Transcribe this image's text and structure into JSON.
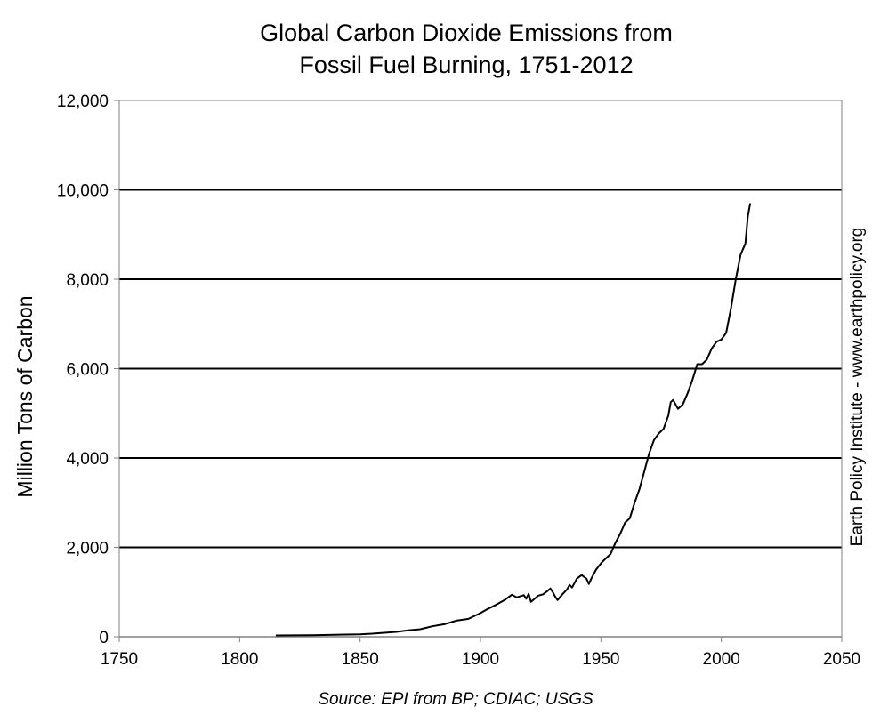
{
  "chart_data": {
    "type": "line",
    "title": [
      "Global Carbon Dioxide Emissions from",
      "Fossil Fuel Burning, 1751-2012"
    ],
    "ylabel": "Million Tons of Carbon",
    "xlabel": "",
    "source": "Source: EPI from BP; CDIAC; USGS",
    "credit": "Earth Policy Institute - www.earthpolicy.org",
    "xlim": [
      1750,
      2050
    ],
    "ylim": [
      0,
      12000
    ],
    "x_ticks": [
      1750,
      1800,
      1850,
      1900,
      1950,
      2000,
      2050
    ],
    "x_tick_labels": [
      "1750",
      "1800",
      "1850",
      "1900",
      "1950",
      "2000",
      "2050"
    ],
    "y_ticks": [
      0,
      2000,
      4000,
      6000,
      8000,
      10000,
      12000
    ],
    "y_tick_labels": [
      "0",
      "2,000",
      "4,000",
      "6,000",
      "8,000",
      "10,000",
      "12,000"
    ],
    "gridlines": "horizontal",
    "line_color": "#000000",
    "series": [
      {
        "x": [
          1815,
          1830,
          1850,
          1855,
          1860,
          1865,
          1870,
          1875,
          1880,
          1885,
          1890,
          1895,
          1900,
          1903,
          1906,
          1910,
          1913,
          1915,
          1918,
          1919,
          1920,
          1921,
          1924,
          1926,
          1928,
          1929,
          1930,
          1931,
          1932,
          1934,
          1936,
          1937,
          1938,
          1940,
          1942,
          1944,
          1945,
          1946,
          1948,
          1950,
          1952,
          1954,
          1956,
          1958,
          1960,
          1962,
          1964,
          1966,
          1968,
          1970,
          1972,
          1974,
          1976,
          1978,
          1979,
          1980,
          1982,
          1984,
          1986,
          1988,
          1990,
          1992,
          1994,
          1996,
          1998,
          2000,
          2002,
          2004,
          2006,
          2008,
          2010,
          2011,
          2012
        ],
        "y": [
          30,
          35,
          55,
          70,
          90,
          110,
          145,
          170,
          235,
          280,
          360,
          400,
          530,
          620,
          700,
          820,
          940,
          880,
          930,
          850,
          960,
          780,
          920,
          950,
          1030,
          1080,
          1000,
          900,
          820,
          950,
          1060,
          1160,
          1100,
          1300,
          1380,
          1300,
          1180,
          1300,
          1500,
          1640,
          1750,
          1850,
          2100,
          2300,
          2550,
          2650,
          3000,
          3300,
          3700,
          4100,
          4400,
          4550,
          4650,
          4950,
          5250,
          5300,
          5100,
          5200,
          5450,
          5750,
          6100,
          6100,
          6200,
          6450,
          6600,
          6650,
          6800,
          7350,
          8000,
          8550,
          8800,
          9400,
          9700
        ]
      }
    ]
  }
}
